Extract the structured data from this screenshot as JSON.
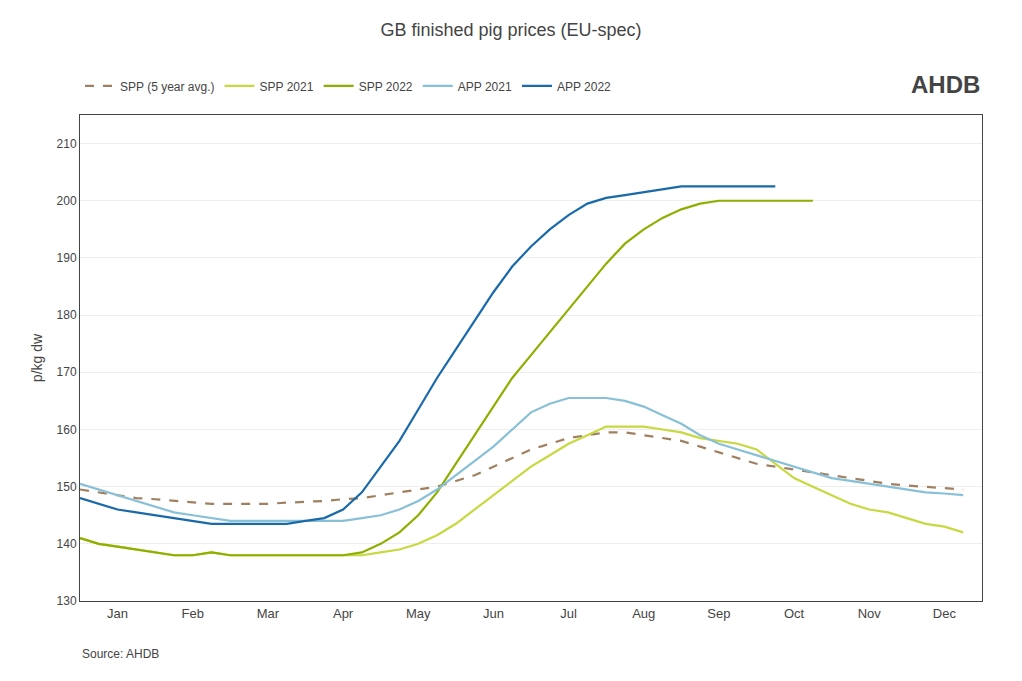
{
  "chart_data": {
    "type": "line",
    "title": "GB finished pig prices (EU-spec)",
    "y_label": "p/kg dw",
    "annotations": [
      "Source: AHDB",
      "AHDB"
    ],
    "xlim": [
      0,
      12
    ],
    "xticks": [
      {
        "value": 0.5,
        "label": "Jan"
      },
      {
        "value": 1.5,
        "label": "Feb"
      },
      {
        "value": 2.5,
        "label": "Mar"
      },
      {
        "value": 3.5,
        "label": "Apr"
      },
      {
        "value": 4.5,
        "label": "May"
      },
      {
        "value": 5.5,
        "label": "Jun"
      },
      {
        "value": 6.5,
        "label": "Jul"
      },
      {
        "value": 7.5,
        "label": "Aug"
      },
      {
        "value": 8.5,
        "label": "Sep"
      },
      {
        "value": 9.5,
        "label": "Oct"
      },
      {
        "value": 10.5,
        "label": "Nov"
      },
      {
        "value": 11.5,
        "label": "Dec"
      }
    ],
    "ylim": [
      130,
      215
    ],
    "yticks": [
      130,
      140,
      150,
      160,
      170,
      180,
      190,
      200,
      210
    ],
    "grid": true,
    "legend": "top",
    "series": [
      {
        "name": "SPP (5 year avg.)",
        "color": "#a08060",
        "line_style": "dashed",
        "x": [
          0.0,
          0.25,
          0.5,
          0.75,
          1.0,
          1.25,
          1.5,
          1.75,
          2.0,
          2.25,
          2.5,
          2.75,
          3.0,
          3.25,
          3.5,
          3.75,
          4.0,
          4.25,
          4.5,
          4.75,
          5.0,
          5.25,
          5.5,
          5.75,
          6.0,
          6.25,
          6.5,
          6.75,
          7.0,
          7.25,
          7.5,
          7.75,
          8.0,
          8.25,
          8.5,
          8.75,
          9.0,
          9.25,
          9.5,
          9.75,
          10.0,
          10.25,
          10.5,
          10.75,
          11.0,
          11.25,
          11.5,
          11.75
        ],
        "values": [
          149.5,
          149.0,
          148.5,
          148.0,
          147.8,
          147.5,
          147.2,
          147.0,
          147.0,
          147.0,
          147.0,
          147.2,
          147.3,
          147.5,
          147.8,
          148.0,
          148.5,
          149.0,
          149.5,
          150.0,
          151.0,
          152.0,
          153.5,
          155.0,
          156.5,
          157.5,
          158.5,
          159.0,
          159.5,
          159.5,
          159.0,
          158.5,
          158.0,
          157.0,
          156.0,
          155.0,
          154.0,
          153.5,
          153.0,
          152.5,
          152.0,
          151.5,
          151.0,
          150.5,
          150.2,
          150.0,
          149.8,
          149.5
        ]
      },
      {
        "name": "SPP 2021",
        "color": "#c8d840",
        "line_style": "solid",
        "x": [
          0.0,
          0.25,
          0.5,
          0.75,
          1.0,
          1.25,
          1.5,
          1.75,
          2.0,
          2.25,
          2.5,
          2.75,
          3.0,
          3.25,
          3.5,
          3.75,
          4.0,
          4.25,
          4.5,
          4.75,
          5.0,
          5.25,
          5.5,
          5.75,
          6.0,
          6.25,
          6.5,
          6.75,
          7.0,
          7.25,
          7.5,
          7.75,
          8.0,
          8.25,
          8.5,
          8.75,
          9.0,
          9.25,
          9.5,
          9.75,
          10.0,
          10.25,
          10.5,
          10.75,
          11.0,
          11.25,
          11.5,
          11.75
        ],
        "values": [
          141.0,
          140.0,
          139.5,
          139.0,
          138.5,
          138.0,
          138.0,
          138.5,
          138.0,
          138.0,
          138.0,
          138.0,
          138.0,
          138.0,
          138.0,
          138.0,
          138.5,
          139.0,
          140.0,
          141.5,
          143.5,
          146.0,
          148.5,
          151.0,
          153.5,
          155.5,
          157.5,
          159.0,
          160.5,
          160.5,
          160.5,
          160.0,
          159.5,
          158.5,
          158.0,
          157.5,
          156.5,
          154.0,
          151.5,
          150.0,
          148.5,
          147.0,
          146.0,
          145.5,
          144.5,
          143.5,
          143.0,
          142.0
        ]
      },
      {
        "name": "SPP 2022",
        "color": "#8db000",
        "line_style": "solid",
        "x": [
          0.0,
          0.25,
          0.5,
          0.75,
          1.0,
          1.25,
          1.5,
          1.75,
          2.0,
          2.25,
          2.5,
          2.75,
          3.0,
          3.25,
          3.5,
          3.75,
          4.0,
          4.25,
          4.5,
          4.75,
          5.0,
          5.25,
          5.5,
          5.75,
          6.0,
          6.25,
          6.5,
          6.75,
          7.0,
          7.25,
          7.5,
          7.75,
          8.0,
          8.25,
          8.5,
          8.75,
          9.0,
          9.25,
          9.5,
          9.75
        ],
        "values": [
          141.0,
          140.0,
          139.5,
          139.0,
          138.5,
          138.0,
          138.0,
          138.5,
          138.0,
          138.0,
          138.0,
          138.0,
          138.0,
          138.0,
          138.0,
          138.5,
          140.0,
          142.0,
          145.0,
          149.0,
          154.0,
          159.0,
          164.0,
          169.0,
          173.0,
          177.0,
          181.0,
          185.0,
          189.0,
          192.5,
          195.0,
          197.0,
          198.5,
          199.5,
          200.0,
          200.0,
          200.0,
          200.0,
          200.0,
          200.0
        ]
      },
      {
        "name": "APP 2021",
        "color": "#88c0d8",
        "line_style": "solid",
        "x": [
          0.0,
          0.25,
          0.5,
          0.75,
          1.0,
          1.25,
          1.5,
          1.75,
          2.0,
          2.25,
          2.5,
          2.75,
          3.0,
          3.25,
          3.5,
          3.75,
          4.0,
          4.25,
          4.5,
          4.75,
          5.0,
          5.25,
          5.5,
          5.75,
          6.0,
          6.25,
          6.5,
          6.75,
          7.0,
          7.25,
          7.5,
          7.75,
          8.0,
          8.25,
          8.5,
          8.75,
          9.0,
          9.25,
          9.5,
          9.75,
          10.0,
          10.25,
          10.5,
          10.75,
          11.0,
          11.25,
          11.5,
          11.75
        ],
        "values": [
          150.5,
          149.5,
          148.5,
          147.5,
          146.5,
          145.5,
          145.0,
          144.5,
          144.0,
          144.0,
          144.0,
          144.0,
          144.0,
          144.0,
          144.0,
          144.5,
          145.0,
          146.0,
          147.5,
          149.5,
          152.0,
          154.5,
          157.0,
          160.0,
          163.0,
          164.5,
          165.5,
          165.5,
          165.5,
          165.0,
          164.0,
          162.5,
          161.0,
          159.0,
          157.5,
          156.5,
          155.5,
          154.5,
          153.5,
          152.5,
          151.5,
          151.0,
          150.5,
          150.0,
          149.5,
          149.0,
          148.8,
          148.5
        ]
      },
      {
        "name": "APP 2022",
        "color": "#1a6aaa",
        "line_style": "solid",
        "x": [
          0.0,
          0.25,
          0.5,
          0.75,
          1.0,
          1.25,
          1.5,
          1.75,
          2.0,
          2.25,
          2.5,
          2.75,
          3.0,
          3.25,
          3.5,
          3.75,
          4.0,
          4.25,
          4.5,
          4.75,
          5.0,
          5.25,
          5.5,
          5.75,
          6.0,
          6.25,
          6.5,
          6.75,
          7.0,
          7.25,
          7.5,
          7.75,
          8.0,
          8.25,
          8.5,
          8.75,
          9.0,
          9.25
        ],
        "values": [
          148.0,
          147.0,
          146.0,
          145.5,
          145.0,
          144.5,
          144.0,
          143.5,
          143.5,
          143.5,
          143.5,
          143.5,
          144.0,
          144.5,
          146.0,
          149.0,
          153.5,
          158.0,
          163.5,
          169.0,
          174.0,
          179.0,
          184.0,
          188.5,
          192.0,
          195.0,
          197.5,
          199.5,
          200.5,
          201.0,
          201.5,
          202.0,
          202.5,
          202.5,
          202.5,
          202.5,
          202.5,
          202.5
        ]
      }
    ]
  }
}
